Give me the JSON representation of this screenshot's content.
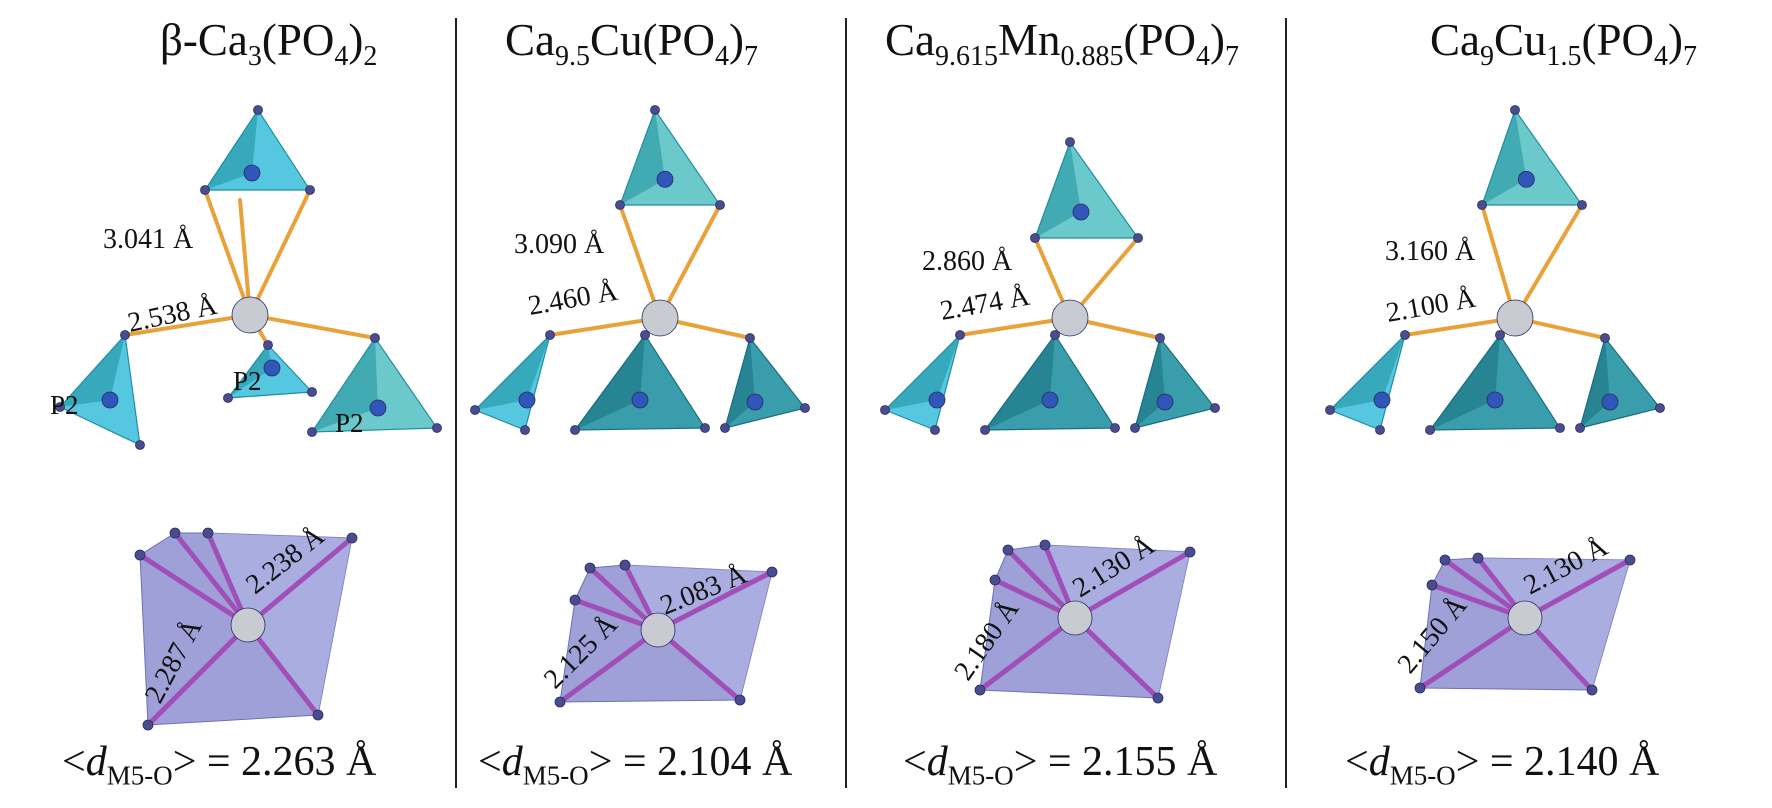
{
  "figure": {
    "panels": [
      {
        "title": {
          "pre": "β-Ca",
          "parts": [
            [
              "3",
              true
            ],
            [
              "(PO",
              false
            ],
            [
              "4",
              true
            ],
            [
              ")",
              false
            ],
            [
              "2",
              true
            ]
          ]
        },
        "upper_bonds": [
          "3.041 Å",
          "2.538 Å"
        ],
        "site_labels": [
          "P2",
          "P2",
          "P2"
        ],
        "lower_bonds": [
          "2.238 Å",
          "2.287 Å"
        ],
        "avg": {
          "label": "<",
          "sym": "d",
          "sub": "M5-O",
          "rest": "> = 2.263 Å"
        }
      },
      {
        "title": {
          "pre": "Ca",
          "parts": [
            [
              "9.5",
              true
            ],
            [
              "Cu(PO",
              false
            ],
            [
              "4",
              true
            ],
            [
              ")",
              false
            ],
            [
              "7",
              true
            ]
          ]
        },
        "upper_bonds": [
          "3.090 Å",
          "2.460 Å"
        ],
        "site_labels": [],
        "lower_bonds": [
          "2.083 Å",
          "2.125 Å"
        ],
        "avg": {
          "label": "<",
          "sym": "d",
          "sub": "M5-O",
          "rest": "> = 2.104 Å"
        }
      },
      {
        "title": {
          "pre": "Ca",
          "parts": [
            [
              "9.615",
              true
            ],
            [
              "Mn",
              false
            ],
            [
              "0.885",
              true
            ],
            [
              "(PO",
              false
            ],
            [
              "4",
              true
            ],
            [
              ")",
              false
            ],
            [
              "7",
              true
            ]
          ]
        },
        "upper_bonds": [
          "2.860 Å",
          "2.474 Å"
        ],
        "site_labels": [],
        "lower_bonds": [
          "2.130 Å",
          "2.180 Å"
        ],
        "avg": {
          "label": "<",
          "sym": "d",
          "sub": "M5-O",
          "rest": "> = 2.155 Å"
        }
      },
      {
        "title": {
          "pre": "Ca",
          "parts": [
            [
              "9",
              true
            ],
            [
              "Cu",
              false
            ],
            [
              "1.5",
              true
            ],
            [
              "(PO",
              false
            ],
            [
              "4",
              true
            ],
            [
              ")",
              false
            ],
            [
              "7",
              true
            ]
          ]
        },
        "upper_bonds": [
          "3.160 Å",
          "2.100 Å"
        ],
        "site_labels": [],
        "lower_bonds": [
          "2.130 Å",
          "2.150 Å"
        ],
        "avg": {
          "label": "<",
          "sym": "d",
          "sub": "M5-O",
          "rest": "> = 2.140 Å"
        }
      }
    ],
    "colors": {
      "tetra_light": "#3fbfdc",
      "tetra_dark": "#1f8fa0",
      "tetra_teal": "#58c2c4",
      "bond_orange": "#e9a23a",
      "octa_face": "#8d8fd0",
      "octa_light": "#b3b5e4",
      "bond_purple": "#a04fb8",
      "atom_o": "#4a4c90",
      "atom_p": "#2f56b8",
      "atom_m": "#c9cbd2"
    }
  }
}
